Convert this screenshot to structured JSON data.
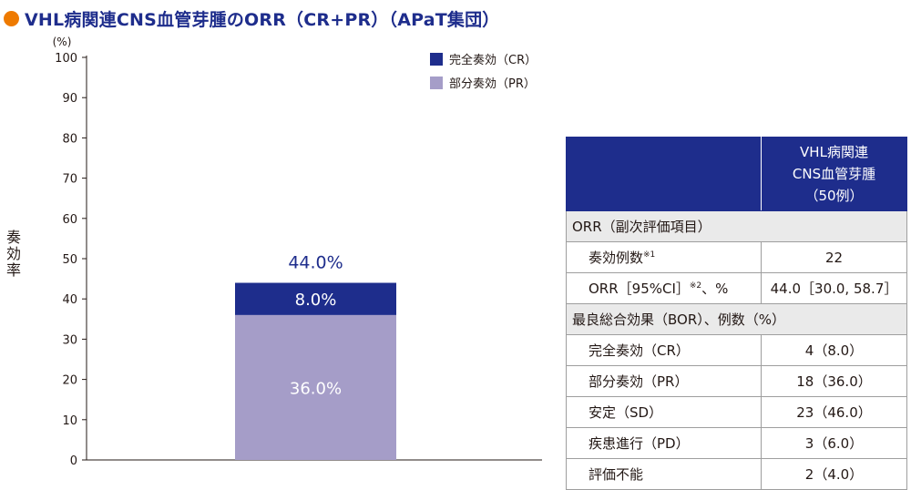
{
  "title": "VHL病関連CNS血管芽腫のORR（CR+PR）（APaT集団）",
  "chart_data": {
    "type": "bar",
    "stacked": true,
    "title": "VHL病関連CNS血管芽腫のORR（CR+PR）（APaT集団）",
    "ylabel": "奏効率",
    "yunit": "(%)",
    "ylim": [
      0,
      100
    ],
    "yticks": [
      0,
      10,
      20,
      30,
      40,
      50,
      60,
      70,
      80,
      90,
      100
    ],
    "categories": [
      ""
    ],
    "series": [
      {
        "name": "部分奏効（PR）",
        "values": [
          36.0
        ],
        "label": "36.0%",
        "color": "#a59dc8"
      },
      {
        "name": "完全奏効（CR）",
        "values": [
          8.0
        ],
        "label": "8.0%",
        "color": "#1e2d8c"
      }
    ],
    "total_labels": [
      "44.0%"
    ],
    "legend": {
      "position": "top-right",
      "items": [
        {
          "label": "完全奏効（CR）",
          "color": "#1e2d8c"
        },
        {
          "label": "部分奏効（PR）",
          "color": "#a59dc8"
        }
      ]
    },
    "grid": false
  },
  "table": {
    "header": "VHL病関連\nCNS血管芽腫\n（50例）",
    "rows": [
      {
        "type": "section",
        "label": "ORR（副次評価項目）"
      },
      {
        "type": "item",
        "label": "奏効例数",
        "sup": "※1",
        "value": "22"
      },
      {
        "type": "item",
        "label": "ORR［95%CI］",
        "sup": "※2",
        "suffix": "、%",
        "value": "44.0［30.0, 58.7］"
      },
      {
        "type": "section",
        "label": "最良総合効果（BOR）、例数（%）"
      },
      {
        "type": "item",
        "label": "完全奏効（CR）",
        "value": "4（8.0）"
      },
      {
        "type": "item",
        "label": "部分奏効（PR）",
        "value": "18（36.0）"
      },
      {
        "type": "item",
        "label": "安定（SD）",
        "value": "23（46.0）"
      },
      {
        "type": "item",
        "label": "疾患進行（PD）",
        "value": "3（6.0）"
      },
      {
        "type": "item",
        "label": "評価不能",
        "value": "2（4.0）"
      }
    ]
  }
}
